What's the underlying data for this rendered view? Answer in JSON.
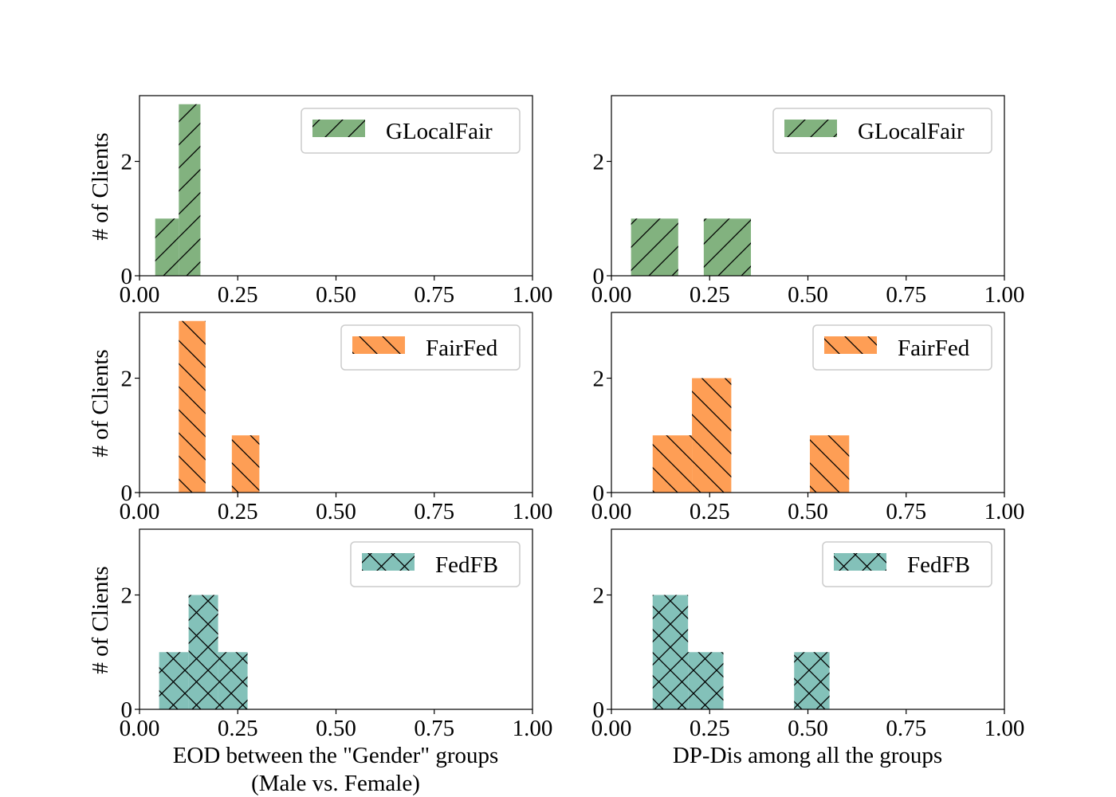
{
  "figure": {
    "ylabel": "# of Clients",
    "xlabel_left_line1": "EOD between the \"Gender\" groups",
    "xlabel_left_line2": "(Male vs. Female)",
    "xlabel_right": "DP-Dis among all the groups"
  },
  "colors": {
    "GLocalFair": "#82b27f",
    "FairFed": "#fe9e55",
    "FedFB": "#83c1b9"
  },
  "chart_data": [
    {
      "type": "bar",
      "panel": "EOD-GLocalFair",
      "series": "GLocalFair",
      "hatch": "forward",
      "bins": [
        {
          "from": 0.04,
          "to": 0.1,
          "count": 1
        },
        {
          "from": 0.1,
          "to": 0.155,
          "count": 3
        }
      ],
      "xlim": [
        0,
        1
      ],
      "ylim": [
        0,
        3.15
      ],
      "xticks": [
        "0.00",
        "0.25",
        "0.50",
        "0.75",
        "1.00"
      ],
      "yticks": [
        "0",
        "2"
      ],
      "legend": "GLocalFair",
      "legend_position": "top-right"
    },
    {
      "type": "bar",
      "panel": "DP-GLocalFair",
      "series": "GLocalFair",
      "hatch": "forward",
      "bins": [
        {
          "from": 0.05,
          "to": 0.17,
          "count": 1
        },
        {
          "from": 0.235,
          "to": 0.355,
          "count": 1
        }
      ],
      "xlim": [
        0,
        1
      ],
      "ylim": [
        0,
        3.15
      ],
      "xticks": [
        "0.00",
        "0.25",
        "0.50",
        "0.75",
        "1.00"
      ],
      "yticks": [
        "0",
        "2"
      ],
      "legend": "GLocalFair",
      "legend_position": "top-right"
    },
    {
      "type": "bar",
      "panel": "EOD-FairFed",
      "series": "FairFed",
      "hatch": "back",
      "bins": [
        {
          "from": 0.1,
          "to": 0.168,
          "count": 3
        },
        {
          "from": 0.235,
          "to": 0.305,
          "count": 1
        }
      ],
      "xlim": [
        0,
        1
      ],
      "ylim": [
        0,
        3.15
      ],
      "xticks": [
        "0.00",
        "0.25",
        "0.50",
        "0.75",
        "1.00"
      ],
      "yticks": [
        "0",
        "2"
      ],
      "legend": "FairFed",
      "legend_position": "top-right"
    },
    {
      "type": "bar",
      "panel": "DP-FairFed",
      "series": "FairFed",
      "hatch": "back",
      "bins": [
        {
          "from": 0.105,
          "to": 0.205,
          "count": 1
        },
        {
          "from": 0.205,
          "to": 0.305,
          "count": 2
        },
        {
          "from": 0.505,
          "to": 0.605,
          "count": 1
        }
      ],
      "xlim": [
        0,
        1
      ],
      "ylim": [
        0,
        3.15
      ],
      "xticks": [
        "0.00",
        "0.25",
        "0.50",
        "0.75",
        "1.00"
      ],
      "yticks": [
        "0",
        "2"
      ],
      "legend": "FairFed",
      "legend_position": "top-right"
    },
    {
      "type": "bar",
      "panel": "EOD-FedFB",
      "series": "FedFB",
      "hatch": "cross",
      "bins": [
        {
          "from": 0.05,
          "to": 0.125,
          "count": 1
        },
        {
          "from": 0.125,
          "to": 0.2,
          "count": 2
        },
        {
          "from": 0.2,
          "to": 0.275,
          "count": 1
        }
      ],
      "xlim": [
        0,
        1
      ],
      "ylim": [
        0,
        3.15
      ],
      "xticks": [
        "0.00",
        "0.25",
        "0.50",
        "0.75",
        "1.00"
      ],
      "yticks": [
        "0",
        "2"
      ],
      "legend": "FedFB",
      "legend_position": "top-right"
    },
    {
      "type": "bar",
      "panel": "DP-FedFB",
      "series": "FedFB",
      "hatch": "cross",
      "bins": [
        {
          "from": 0.105,
          "to": 0.195,
          "count": 2
        },
        {
          "from": 0.195,
          "to": 0.285,
          "count": 1
        },
        {
          "from": 0.465,
          "to": 0.555,
          "count": 1
        }
      ],
      "xlim": [
        0,
        1
      ],
      "ylim": [
        0,
        3.15
      ],
      "xticks": [
        "0.00",
        "0.25",
        "0.50",
        "0.75",
        "1.00"
      ],
      "yticks": [
        "0",
        "2"
      ],
      "legend": "FedFB",
      "legend_position": "top-right"
    }
  ]
}
